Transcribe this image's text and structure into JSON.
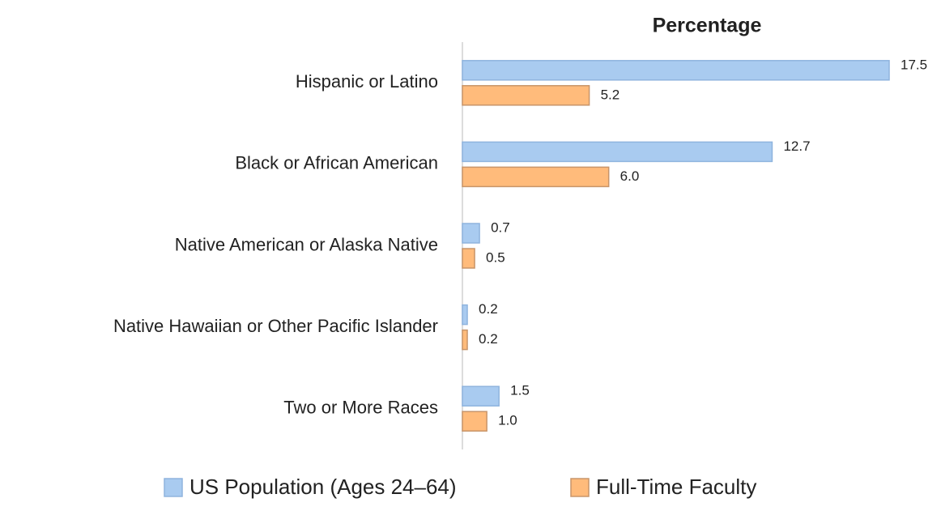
{
  "chart_data": {
    "type": "hbar",
    "title": "Percentage",
    "categories": [
      "Hispanic or Latino",
      "Black or African American",
      "Native American or Alaska Native",
      "Native Hawaiian or Other Pacific Islander",
      "Two or More Races"
    ],
    "series": [
      {
        "name": "US Population (Ages 24–64)",
        "color": "#a9cbf0",
        "values": [
          17.5,
          12.7,
          0.7,
          0.2,
          1.5
        ],
        "value_labels": [
          "17.5",
          "12.7",
          "0.7",
          "0.2",
          "1.5"
        ]
      },
      {
        "name": "Full-Time Faculty",
        "color": "#ffbb7b",
        "values": [
          5.2,
          6,
          0.5,
          0.2,
          1
        ],
        "value_labels": [
          "5.2",
          "6.0",
          "0.5",
          "0.2",
          "1.0"
        ]
      }
    ],
    "legend": "bottom"
  }
}
